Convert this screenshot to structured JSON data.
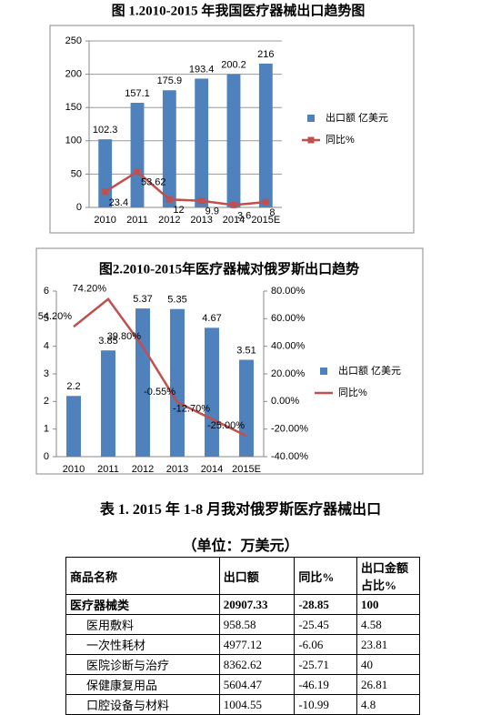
{
  "chart_data": [
    {
      "type": "bar",
      "title": "图 1.2010-2015 年我国医疗器械出口趋势图",
      "categories": [
        "2010",
        "2011",
        "2012",
        "2013",
        "2014",
        "2015E"
      ],
      "series": [
        {
          "name": "出口额 亿美元",
          "type": "bar",
          "color": "#4f81bd",
          "values": [
            102.3,
            157.1,
            175.9,
            193.4,
            200.2,
            216
          ]
        },
        {
          "name": "同比%",
          "type": "line",
          "color": "#c0504d",
          "marker": "square",
          "values": [
            23.4,
            53.62,
            12,
            9.9,
            3.6,
            8
          ]
        }
      ],
      "ylim": [
        0,
        250
      ],
      "yticks": [
        0,
        50,
        100,
        150,
        200,
        250
      ],
      "grid": true,
      "legend": "right"
    },
    {
      "type": "bar",
      "title": "图2.2010-2015年医疗器械对俄罗斯出口趋势",
      "categories": [
        "2010",
        "2011",
        "2012",
        "2013",
        "2014",
        "2015E"
      ],
      "series": [
        {
          "name": "出口额 亿美元",
          "type": "bar",
          "color": "#4f81bd",
          "values": [
            2.2,
            3.85,
            5.37,
            5.35,
            4.67,
            3.51
          ]
        },
        {
          "name": "同比%",
          "type": "line",
          "axis": "y2",
          "color": "#c0504d",
          "values": [
            54.2,
            74.2,
            39.8,
            -0.55,
            -12.7,
            -25.0
          ],
          "value_labels": [
            "54.20%",
            "74.20%",
            "39.80%",
            "-0.55%",
            "-12.70%",
            "-25.00%"
          ]
        }
      ],
      "ylim": [
        0,
        6
      ],
      "yticks": [
        0,
        1,
        2,
        3,
        4,
        5,
        6
      ],
      "y2lim": [
        -40,
        80
      ],
      "y2ticks": [
        {
          "value": -40,
          "label": "-40.00%"
        },
        {
          "value": -20,
          "label": "-20.00%"
        },
        {
          "value": 0,
          "label": "0.00%"
        },
        {
          "value": 20,
          "label": "20.00%"
        },
        {
          "value": 40,
          "label": "40.00%"
        },
        {
          "value": 60,
          "label": "60.00%"
        },
        {
          "value": 80,
          "label": "80.00%"
        }
      ],
      "grid": false,
      "legend": "right"
    }
  ],
  "table_title": "表 1. 2015 年 1-8 月我对俄罗斯医疗器械出口",
  "table_unit": "（单位：万美元）",
  "table": {
    "header": [
      "商品名称",
      "出口额",
      "同比%",
      "出口金额占比%"
    ],
    "rows": [
      [
        "医疗器械类",
        "20907.33",
        "-28.85",
        "100"
      ],
      [
        "医用敷料",
        "958.58",
        "-25.45",
        "4.58"
      ],
      [
        "一次性耗材",
        "4977.12",
        "-6.06",
        "23.81"
      ],
      [
        "医院诊断与治疗",
        "8362.62",
        "-25.71",
        "40"
      ],
      [
        "保健康复用品",
        "5604.47",
        "-46.19",
        "26.81"
      ],
      [
        "口腔设备与材料",
        "1004.55",
        "-10.99",
        "4.8"
      ]
    ]
  }
}
